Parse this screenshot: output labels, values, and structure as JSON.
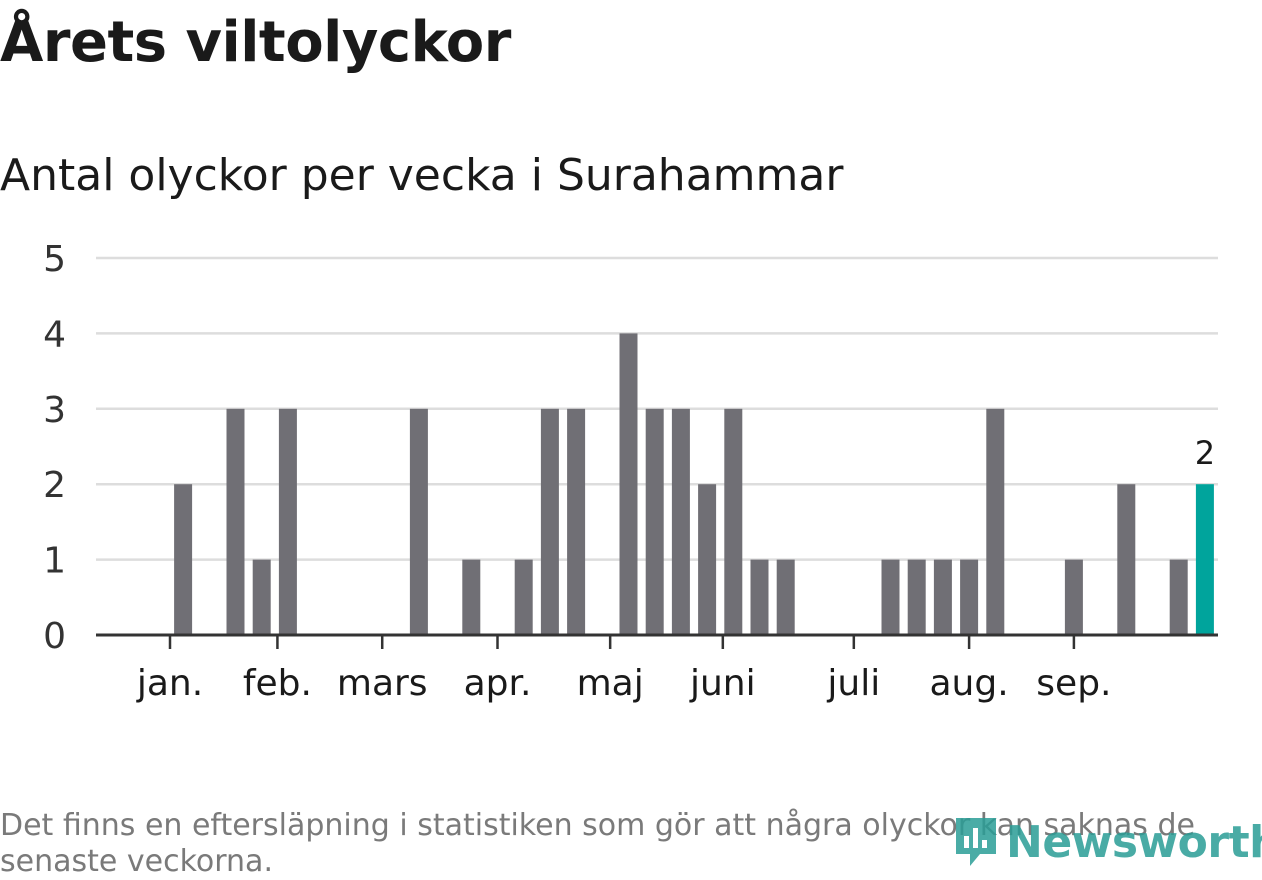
{
  "header": {
    "title": "Årets viltolyckor",
    "subtitle": "Antal olyckor per vecka i Surahammar"
  },
  "footnote": "Det finns en eftersläpning i statistiken som gör att några olyckor kan saknas de senaste veckorna.",
  "logo": {
    "text": "Newsworthy"
  },
  "colors": {
    "bar": "#706f75",
    "highlight": "#00a49c",
    "grid": "#dddddd",
    "axis": "#333333",
    "logo": "#2a9d96"
  },
  "chart_data": {
    "type": "bar",
    "x_unit": "week",
    "weeks": [
      1,
      2,
      3,
      4,
      5,
      6,
      7,
      8,
      9,
      10,
      11,
      12,
      13,
      14,
      15,
      16,
      17,
      18,
      19,
      20,
      21,
      22,
      23,
      24,
      25,
      26,
      27,
      28,
      29,
      30,
      31,
      32,
      33,
      34,
      35,
      36,
      37,
      38,
      39,
      40,
      41,
      42
    ],
    "values": [
      0,
      0,
      0,
      2,
      0,
      3,
      1,
      3,
      0,
      0,
      0,
      0,
      3,
      0,
      1,
      0,
      1,
      3,
      3,
      0,
      4,
      3,
      3,
      2,
      3,
      1,
      1,
      0,
      0,
      0,
      1,
      1,
      1,
      1,
      3,
      0,
      0,
      1,
      0,
      2,
      0,
      1
    ],
    "highlight_last": {
      "week": 43,
      "value": 2,
      "label": "2"
    },
    "months": [
      {
        "label": "jan.",
        "week": 3.5
      },
      {
        "label": "feb.",
        "week": 7.6
      },
      {
        "label": "mars",
        "week": 11.6
      },
      {
        "label": "apr.",
        "week": 16.0
      },
      {
        "label": "maj",
        "week": 20.3
      },
      {
        "label": "juni",
        "week": 24.6
      },
      {
        "label": "juli",
        "week": 29.6
      },
      {
        "label": "aug.",
        "week": 34.0
      },
      {
        "label": "sep.",
        "week": 38.0
      }
    ],
    "yticks": [
      "0",
      "1",
      "2",
      "3",
      "4",
      "5"
    ],
    "ylim": [
      0,
      5
    ],
    "grid": true
  }
}
